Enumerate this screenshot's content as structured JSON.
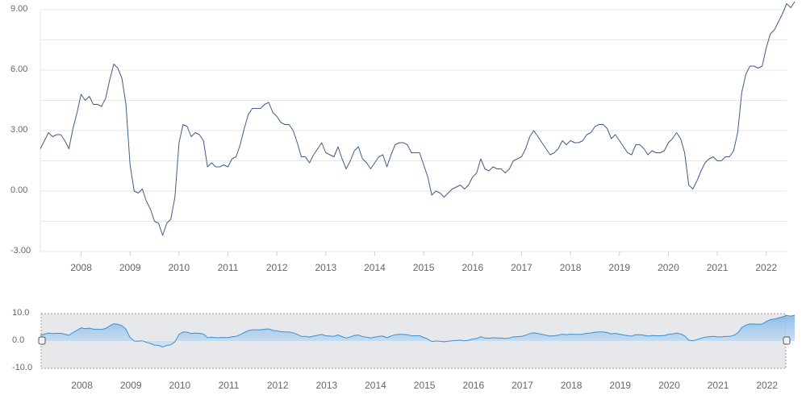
{
  "chart_data": [
    {
      "type": "line",
      "title": "",
      "xlabel": "",
      "ylabel": "",
      "ylim": [
        -3,
        9
      ],
      "y_ticks": [
        "9.00",
        "6.00",
        "3.00",
        "0.00",
        "-3.00"
      ],
      "x_ticks": [
        "2008",
        "2009",
        "2010",
        "2011",
        "2012",
        "2013",
        "2014",
        "2015",
        "2016",
        "2017",
        "2018",
        "2019",
        "2020",
        "2021",
        "2022"
      ],
      "grid": true,
      "legend": "none",
      "x_range": [
        "2007-03",
        "2022-06"
      ],
      "series": [
        {
          "points": [
            [
              "2007-03",
              2.1
            ],
            [
              "2007-04",
              2.5
            ],
            [
              "2007-05",
              2.9
            ],
            [
              "2007-06",
              2.7
            ],
            [
              "2007-07",
              2.8
            ],
            [
              "2007-08",
              2.8
            ],
            [
              "2007-09",
              2.5
            ],
            [
              "2007-10",
              2.1
            ],
            [
              "2007-11",
              3.1
            ],
            [
              "2007-12",
              3.9
            ],
            [
              "2008-01",
              4.8
            ],
            [
              "2008-02",
              4.5
            ],
            [
              "2008-03",
              4.7
            ],
            [
              "2008-04",
              4.3
            ],
            [
              "2008-05",
              4.3
            ],
            [
              "2008-06",
              4.2
            ],
            [
              "2008-07",
              4.6
            ],
            [
              "2008-08",
              5.5
            ],
            [
              "2008-09",
              6.3
            ],
            [
              "2008-10",
              6.1
            ],
            [
              "2008-11",
              5.6
            ],
            [
              "2008-12",
              4.3
            ],
            [
              "2009-01",
              1.3
            ],
            [
              "2009-02",
              0.0
            ],
            [
              "2009-03",
              -0.1
            ],
            [
              "2009-04",
              0.1
            ],
            [
              "2009-05",
              -0.5
            ],
            [
              "2009-06",
              -0.9
            ],
            [
              "2009-07",
              -1.5
            ],
            [
              "2009-08",
              -1.6
            ],
            [
              "2009-09",
              -2.2
            ],
            [
              "2009-10",
              -1.6
            ],
            [
              "2009-11",
              -1.4
            ],
            [
              "2009-12",
              -0.3
            ],
            [
              "2010-01",
              2.4
            ],
            [
              "2010-02",
              3.3
            ],
            [
              "2010-03",
              3.2
            ],
            [
              "2010-04",
              2.7
            ],
            [
              "2010-05",
              2.9
            ],
            [
              "2010-06",
              2.8
            ],
            [
              "2010-07",
              2.5
            ],
            [
              "2010-08",
              1.2
            ],
            [
              "2010-09",
              1.4
            ],
            [
              "2010-10",
              1.2
            ],
            [
              "2010-11",
              1.2
            ],
            [
              "2010-12",
              1.3
            ],
            [
              "2011-01",
              1.2
            ],
            [
              "2011-02",
              1.6
            ],
            [
              "2011-03",
              1.7
            ],
            [
              "2011-04",
              2.3
            ],
            [
              "2011-05",
              3.1
            ],
            [
              "2011-06",
              3.8
            ],
            [
              "2011-07",
              4.1
            ],
            [
              "2011-08",
              4.1
            ],
            [
              "2011-09",
              4.1
            ],
            [
              "2011-10",
              4.3
            ],
            [
              "2011-11",
              4.4
            ],
            [
              "2011-12",
              3.9
            ],
            [
              "2012-01",
              3.7
            ],
            [
              "2012-02",
              3.4
            ],
            [
              "2012-03",
              3.3
            ],
            [
              "2012-04",
              3.3
            ],
            [
              "2012-05",
              3.0
            ],
            [
              "2012-06",
              2.4
            ],
            [
              "2012-07",
              1.7
            ],
            [
              "2012-08",
              1.7
            ],
            [
              "2012-09",
              1.4
            ],
            [
              "2012-10",
              1.8
            ],
            [
              "2012-11",
              2.1
            ],
            [
              "2012-12",
              2.4
            ],
            [
              "2013-01",
              1.9
            ],
            [
              "2013-02",
              1.8
            ],
            [
              "2013-03",
              1.7
            ],
            [
              "2013-04",
              2.2
            ],
            [
              "2013-05",
              1.6
            ],
            [
              "2013-06",
              1.1
            ],
            [
              "2013-07",
              1.5
            ],
            [
              "2013-08",
              2.0
            ],
            [
              "2013-09",
              2.2
            ],
            [
              "2013-10",
              1.6
            ],
            [
              "2013-11",
              1.4
            ],
            [
              "2013-12",
              1.1
            ],
            [
              "2014-01",
              1.4
            ],
            [
              "2014-02",
              1.7
            ],
            [
              "2014-03",
              1.8
            ],
            [
              "2014-04",
              1.2
            ],
            [
              "2014-05",
              1.8
            ],
            [
              "2014-06",
              2.3
            ],
            [
              "2014-07",
              2.4
            ],
            [
              "2014-08",
              2.4
            ],
            [
              "2014-09",
              2.3
            ],
            [
              "2014-10",
              1.9
            ],
            [
              "2014-11",
              1.9
            ],
            [
              "2014-12",
              1.9
            ],
            [
              "2015-01",
              1.3
            ],
            [
              "2015-02",
              0.7
            ],
            [
              "2015-03",
              -0.2
            ],
            [
              "2015-04",
              0.0
            ],
            [
              "2015-05",
              -0.1
            ],
            [
              "2015-06",
              -0.3
            ],
            [
              "2015-07",
              -0.1
            ],
            [
              "2015-08",
              0.1
            ],
            [
              "2015-09",
              0.2
            ],
            [
              "2015-10",
              0.3
            ],
            [
              "2015-11",
              0.1
            ],
            [
              "2015-12",
              0.3
            ],
            [
              "2016-01",
              0.7
            ],
            [
              "2016-02",
              0.9
            ],
            [
              "2016-03",
              1.6
            ],
            [
              "2016-04",
              1.1
            ],
            [
              "2016-05",
              1.0
            ],
            [
              "2016-06",
              1.2
            ],
            [
              "2016-07",
              1.1
            ],
            [
              "2016-08",
              1.1
            ],
            [
              "2016-09",
              0.9
            ],
            [
              "2016-10",
              1.1
            ],
            [
              "2016-11",
              1.5
            ],
            [
              "2016-12",
              1.6
            ],
            [
              "2017-01",
              1.7
            ],
            [
              "2017-02",
              2.1
            ],
            [
              "2017-03",
              2.7
            ],
            [
              "2017-04",
              3.0
            ],
            [
              "2017-05",
              2.7
            ],
            [
              "2017-06",
              2.4
            ],
            [
              "2017-07",
              2.1
            ],
            [
              "2017-08",
              1.8
            ],
            [
              "2017-09",
              1.9
            ],
            [
              "2017-10",
              2.1
            ],
            [
              "2017-11",
              2.5
            ],
            [
              "2017-12",
              2.3
            ],
            [
              "2018-01",
              2.5
            ],
            [
              "2018-02",
              2.4
            ],
            [
              "2018-03",
              2.4
            ],
            [
              "2018-04",
              2.5
            ],
            [
              "2018-05",
              2.8
            ],
            [
              "2018-06",
              2.9
            ],
            [
              "2018-07",
              3.2
            ],
            [
              "2018-08",
              3.3
            ],
            [
              "2018-09",
              3.3
            ],
            [
              "2018-10",
              3.1
            ],
            [
              "2018-11",
              2.6
            ],
            [
              "2018-12",
              2.8
            ],
            [
              "2019-01",
              2.5
            ],
            [
              "2019-02",
              2.2
            ],
            [
              "2019-03",
              1.9
            ],
            [
              "2019-04",
              1.8
            ],
            [
              "2019-05",
              2.3
            ],
            [
              "2019-06",
              2.3
            ],
            [
              "2019-07",
              2.1
            ],
            [
              "2019-08",
              1.8
            ],
            [
              "2019-09",
              2.0
            ],
            [
              "2019-10",
              1.9
            ],
            [
              "2019-11",
              1.9
            ],
            [
              "2019-12",
              2.0
            ],
            [
              "2020-01",
              2.4
            ],
            [
              "2020-02",
              2.6
            ],
            [
              "2020-03",
              2.9
            ],
            [
              "2020-04",
              2.6
            ],
            [
              "2020-05",
              1.9
            ],
            [
              "2020-06",
              0.3
            ],
            [
              "2020-07",
              0.1
            ],
            [
              "2020-08",
              0.5
            ],
            [
              "2020-09",
              1.0
            ],
            [
              "2020-10",
              1.4
            ],
            [
              "2020-11",
              1.6
            ],
            [
              "2020-12",
              1.7
            ],
            [
              "2021-01",
              1.5
            ],
            [
              "2021-02",
              1.5
            ],
            [
              "2021-03",
              1.7
            ],
            [
              "2021-04",
              1.7
            ],
            [
              "2021-05",
              2.0
            ],
            [
              "2021-06",
              2.9
            ],
            [
              "2021-07",
              4.9
            ],
            [
              "2021-08",
              5.8
            ],
            [
              "2021-09",
              6.2
            ],
            [
              "2021-10",
              6.2
            ],
            [
              "2021-11",
              6.1
            ],
            [
              "2021-12",
              6.2
            ],
            [
              "2022-01",
              7.1
            ],
            [
              "2022-02",
              7.8
            ],
            [
              "2022-03",
              8.0
            ],
            [
              "2022-04",
              8.4
            ],
            [
              "2022-05",
              8.8
            ],
            [
              "2022-06",
              9.3
            ],
            [
              "2022-07",
              9.1
            ],
            [
              "2022-08",
              9.4
            ]
          ]
        }
      ]
    },
    {
      "type": "area",
      "title": "",
      "ylim": [
        -10,
        10
      ],
      "y_ticks": [
        "10.0",
        "0.0",
        "-10.0"
      ],
      "x_ticks": [
        "2008",
        "2009",
        "2010",
        "2011",
        "2012",
        "2013",
        "2014",
        "2015",
        "2016",
        "2017",
        "2018",
        "2019",
        "2020",
        "2021",
        "2022"
      ],
      "grid": false,
      "legend": "none",
      "series_source": "same as main chart"
    }
  ],
  "colors": {
    "line": "#3f5d8a",
    "nav_area_top": "#7fb6e6",
    "nav_area_bottom": "#cfe3f5",
    "nav_line": "#3d8fd6",
    "nav_selection": "#e6e8eb",
    "grid": "#e6e6e6",
    "text": "#666666"
  }
}
